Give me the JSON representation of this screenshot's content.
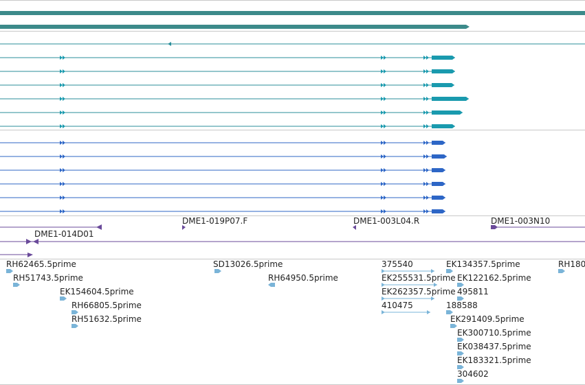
{
  "colors": {
    "divider": "#c8c8c8",
    "gene_bar": "#3c8a8a",
    "transcript_teal": "#1a9aae",
    "transcript_teal_thin": "#2a8e9a",
    "transcript_blue": "#2d66c6",
    "insertion_purple": "#6a4a9a",
    "est_light_blue": "#7ab4d8",
    "label_text": "#222222"
  },
  "insertions": [
    {
      "label": "DME1-019P07.F"
    },
    {
      "label": "DME1-003L04.R"
    },
    {
      "label": "DME1-003N10"
    },
    {
      "label": "DME1-014D01"
    }
  ],
  "ests": [
    {
      "label": "RH62465.5prime"
    },
    {
      "label": "RH51743.5prime"
    },
    {
      "label": "EK154604.5prime"
    },
    {
      "label": "RH66805.5prime"
    },
    {
      "label": "RH51632.5prime"
    },
    {
      "label": "SD13026.5prime"
    },
    {
      "label": "RH64950.5prime"
    },
    {
      "label": "375540"
    },
    {
      "label": "EK255531.5prime"
    },
    {
      "label": "EK262357.5prime"
    },
    {
      "label": "410475"
    },
    {
      "label": "EK134357.5prime"
    },
    {
      "label": "EK122162.5prime"
    },
    {
      "label": "495811"
    },
    {
      "label": "188588"
    },
    {
      "label": "EK291409.5prime"
    },
    {
      "label": "EK300710.5prime"
    },
    {
      "label": "EK038437.5prime"
    },
    {
      "label": "EK183321.5prime"
    },
    {
      "label": "304602"
    },
    {
      "label": "RH180"
    }
  ]
}
